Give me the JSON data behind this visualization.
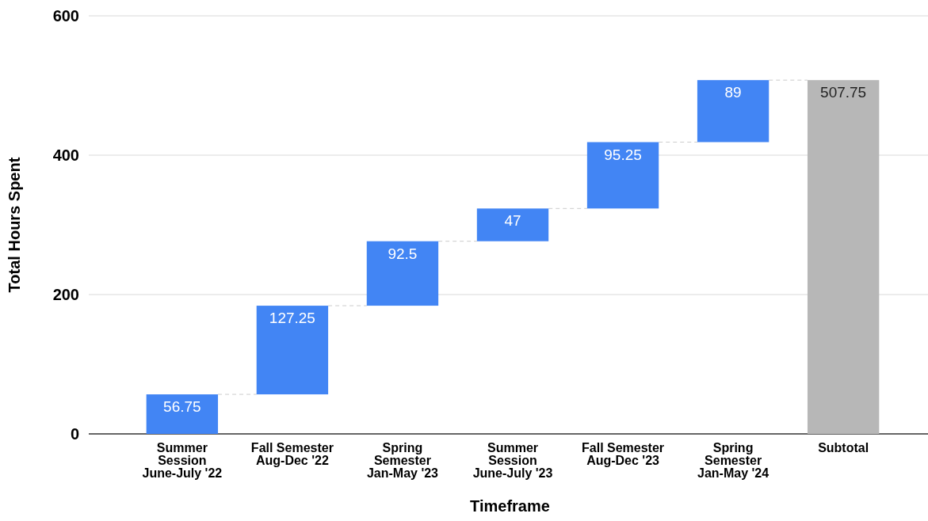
{
  "chart_data": {
    "type": "bar",
    "xlabel": "Timeframe",
    "ylabel": "Total Hours Spent",
    "categories": [
      "Summer\nSession\nJune-July '22",
      "Fall Semester\nAug-Dec '22",
      "Spring\nSemester\nJan-May '23",
      "Summer\nSession\nJune-July '23",
      "Fall Semester\nAug-Dec '23",
      "Spring\nSemester\nJan-May '24",
      "Subtotal"
    ],
    "values": [
      56.75,
      127.25,
      92.5,
      47,
      95.25,
      89,
      507.75
    ],
    "base": [
      0,
      56.75,
      184,
      276.5,
      323.5,
      418.75,
      0
    ],
    "colors": [
      "#4285f4",
      "#4285f4",
      "#4285f4",
      "#4285f4",
      "#4285f4",
      "#4285f4",
      "#b7b7b7"
    ],
    "ylim": [
      0,
      600
    ],
    "yticks": [
      0,
      200,
      400,
      600
    ],
    "grid": "y",
    "data_labels": true
  }
}
